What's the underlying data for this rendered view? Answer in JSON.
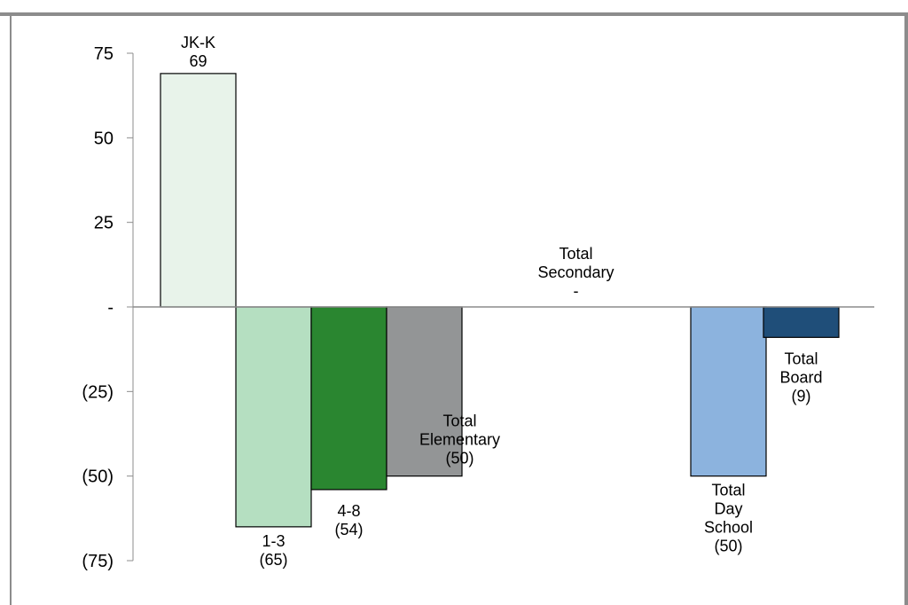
{
  "chart_data": {
    "type": "bar",
    "title": "",
    "xlabel": "",
    "ylabel": "",
    "ylim": [
      -75,
      75
    ],
    "yticks": [
      75,
      50,
      25,
      0,
      -25,
      -50,
      -75
    ],
    "ytick_labels": [
      "75",
      "50",
      "25",
      "-",
      "(25)",
      "(50)",
      "(75)"
    ],
    "grid": false,
    "categories": [
      "JK-K",
      "1-3",
      "4-8",
      "Total Elementary",
      "Total Secondary",
      "Total Day School",
      "Total Board"
    ],
    "values": [
      69,
      -65,
      -54,
      -50,
      0,
      -50,
      -9
    ],
    "label_lines": [
      [
        "JK-K",
        "69"
      ],
      [
        "1-3",
        "(65)"
      ],
      [
        "4-8",
        "(54)"
      ],
      [
        "Total",
        "Elementary",
        "(50)"
      ],
      [
        "Total",
        "Secondary",
        "-"
      ],
      [
        "Total",
        "Day",
        "School",
        "(50)"
      ],
      [
        "Total",
        "Board",
        "(9)"
      ]
    ],
    "colors": [
      "#e8f3ea",
      "#b5dfc1",
      "#2a8630",
      "#939596",
      "#ffffff",
      "#8cb3de",
      "#1f4e79"
    ]
  }
}
